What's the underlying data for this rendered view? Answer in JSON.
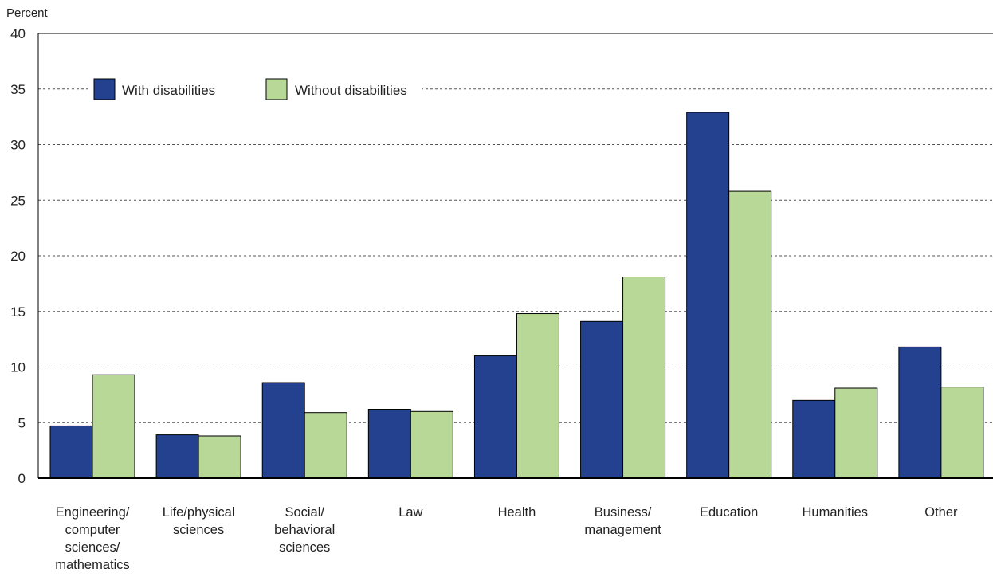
{
  "chart_data": {
    "type": "bar",
    "ylabel": "Percent",
    "ylim": [
      0,
      40
    ],
    "yticks": [
      0,
      5,
      10,
      15,
      20,
      25,
      30,
      35,
      40
    ],
    "grid": true,
    "legend_position": "top-left",
    "categories": [
      "Engineering/\ncomputer\nsciences/\nmathematics",
      "Life/physical\nsciences",
      "Social/\nbehavioral\nsciences",
      "Law",
      "Health",
      "Business/\nmanagement",
      "Education",
      "Humanities",
      "Other"
    ],
    "series": [
      {
        "name": "With disabilities",
        "color": "#24418f",
        "values": [
          4.7,
          3.9,
          8.6,
          6.2,
          11.0,
          14.1,
          32.9,
          7.0,
          11.8
        ]
      },
      {
        "name": "Without disabilities",
        "color": "#b8d898",
        "values": [
          9.3,
          3.8,
          5.9,
          6.0,
          14.8,
          18.1,
          25.8,
          8.1,
          8.2
        ]
      }
    ]
  }
}
